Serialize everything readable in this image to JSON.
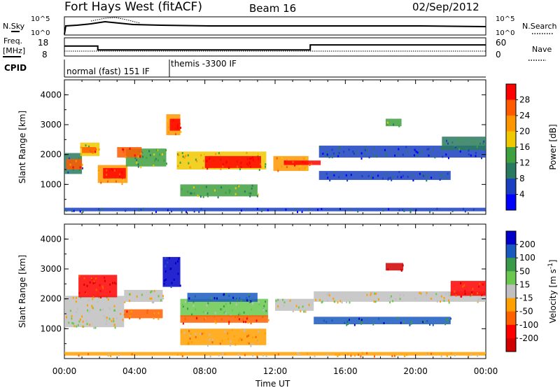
{
  "header": {
    "radar_title": "Fort Hays West (fitACF)",
    "beam": "Beam 16",
    "date": "02/Sep/2012"
  },
  "top_panels": {
    "nsky_label": "N.Sky",
    "nsearch_label": "N.Search",
    "noise_ticks": [
      "10^5",
      "10^0"
    ],
    "freq_label": "Freq.",
    "freq_unit": "[MHz]",
    "freq_ticks": [
      "18",
      "8"
    ],
    "nave_label": "Nave",
    "nave_ticks": [
      "60",
      "0"
    ],
    "cpid_label": "CPID",
    "cpid_segments": [
      {
        "label": "normal (fast) 151 IF",
        "start_hour": 0,
        "end_hour": 6
      },
      {
        "label": "themis -3300 IF",
        "start_hour": 6,
        "end_hour": 24
      }
    ],
    "freq_mhz_series": [
      {
        "hour": 0,
        "value": 14.5
      },
      {
        "hour": 1.9,
        "value": 14.5
      },
      {
        "hour": 1.9,
        "value": 11.5
      },
      {
        "hour": 14,
        "value": 11.5
      },
      {
        "hour": 14,
        "value": 15.3
      },
      {
        "hour": 24,
        "value": 15.3
      }
    ]
  },
  "chart_data": [
    {
      "type": "heatmap",
      "title": "Power",
      "xlabel": "Time UT",
      "ylabel": "Slant Range [km]",
      "xlim": [
        0,
        24
      ],
      "ylim": [
        0,
        4500
      ],
      "x_ticks": [
        "00:00",
        "04:00",
        "08:00",
        "12:00",
        "16:00",
        "20:00",
        "00:00"
      ],
      "y_ticks": [
        "1000",
        "2000",
        "3000",
        "4000"
      ],
      "colorbar_label": "Power [dB]",
      "colorbar_ticks": [
        "28",
        "24",
        "20",
        "16",
        "12",
        "8",
        "4"
      ],
      "colors": [
        "#ff0000",
        "#ff5a00",
        "#ff9600",
        "#f0c800",
        "#3fa03f",
        "#2a7a60",
        "#1a3fc0",
        "#0000ff"
      ],
      "regions": [
        {
          "t0": 0,
          "t1": 1.0,
          "r0": 1350,
          "r1": 2050,
          "level": 5
        },
        {
          "t0": 0.1,
          "t1": 1.0,
          "r0": 1500,
          "r1": 1850,
          "level": 1
        },
        {
          "t0": 0.9,
          "t1": 2.0,
          "r0": 1950,
          "r1": 2400,
          "level": 3
        },
        {
          "t0": 1.0,
          "t1": 1.8,
          "r0": 2050,
          "r1": 2250,
          "level": 1
        },
        {
          "t0": 1.9,
          "t1": 3.6,
          "r0": 1050,
          "r1": 1650,
          "level": 2
        },
        {
          "t0": 2.2,
          "t1": 3.5,
          "r0": 1200,
          "r1": 1550,
          "level": 0
        },
        {
          "t0": 3.5,
          "t1": 5.8,
          "r0": 1600,
          "r1": 2200,
          "level": 4
        },
        {
          "t0": 3.0,
          "t1": 4.4,
          "r0": 1900,
          "r1": 2250,
          "level": 1
        },
        {
          "t0": 5.8,
          "t1": 6.6,
          "r0": 2650,
          "r1": 3350,
          "level": 2
        },
        {
          "t0": 6.0,
          "t1": 6.6,
          "r0": 2800,
          "r1": 3200,
          "level": 0
        },
        {
          "t0": 6.4,
          "t1": 11.5,
          "r0": 1500,
          "r1": 2100,
          "level": 3
        },
        {
          "t0": 8.0,
          "t1": 11.2,
          "r0": 1550,
          "r1": 1950,
          "level": 0
        },
        {
          "t0": 6.6,
          "t1": 11.0,
          "r0": 600,
          "r1": 1000,
          "level": 4
        },
        {
          "t0": 11.9,
          "t1": 13.9,
          "r0": 1450,
          "r1": 1950,
          "level": 2
        },
        {
          "t0": 12.5,
          "t1": 14.6,
          "r0": 1650,
          "r1": 1800,
          "level": 0
        },
        {
          "t0": 14.5,
          "t1": 24,
          "r0": 1900,
          "r1": 2300,
          "level": 6
        },
        {
          "t0": 14.5,
          "t1": 22.0,
          "r0": 1150,
          "r1": 1450,
          "level": 6
        },
        {
          "t0": 21.5,
          "t1": 24,
          "r0": 2150,
          "r1": 2600,
          "level": 5
        },
        {
          "t0": 18.3,
          "t1": 19.2,
          "r0": 2950,
          "r1": 3200,
          "level": 4
        },
        {
          "t0": 0,
          "t1": 24,
          "r0": 100,
          "r1": 220,
          "level": 6
        }
      ]
    },
    {
      "type": "heatmap",
      "title": "Velocity",
      "xlabel": "Time UT",
      "ylabel": "Slant Range [km]",
      "xlim": [
        0,
        24
      ],
      "ylim": [
        0,
        4500
      ],
      "x_ticks": [
        "00:00",
        "04:00",
        "08:00",
        "12:00",
        "16:00",
        "20:00",
        "00:00"
      ],
      "y_ticks": [
        "1000",
        "2000",
        "3000",
        "4000"
      ],
      "colorbar_label": "Velocity [m s",
      "colorbar_unit_exp": "-1",
      "colorbar_ticks": [
        "200",
        "100",
        "50",
        "15",
        "-15",
        "-50",
        "-100",
        "-200"
      ],
      "colors": [
        "#0000c8",
        "#1a5ac0",
        "#3a9a4a",
        "#6ac850",
        "#c0c0c0",
        "#ffa000",
        "#ff6000",
        "#ff0000",
        "#d00000"
      ],
      "regions": [
        {
          "t0": 0,
          "t1": 3.4,
          "r0": 1050,
          "r1": 2100,
          "level": 4
        },
        {
          "t0": 0.8,
          "t1": 3.0,
          "r0": 2050,
          "r1": 2800,
          "level": 7
        },
        {
          "t0": 3.4,
          "t1": 5.6,
          "r0": 1350,
          "r1": 1650,
          "level": 6
        },
        {
          "t0": 3.4,
          "t1": 5.6,
          "r0": 1900,
          "r1": 2300,
          "level": 4
        },
        {
          "t0": 5.6,
          "t1": 6.6,
          "r0": 2400,
          "r1": 3400,
          "level": 0
        },
        {
          "t0": 6.6,
          "t1": 11.6,
          "r0": 1400,
          "r1": 2000,
          "level": 3
        },
        {
          "t0": 7.0,
          "t1": 11.0,
          "r0": 1900,
          "r1": 2200,
          "level": 1
        },
        {
          "t0": 6.6,
          "t1": 11.5,
          "r0": 450,
          "r1": 1000,
          "level": 5
        },
        {
          "t0": 6.6,
          "t1": 11.6,
          "r0": 1200,
          "r1": 1450,
          "level": 6
        },
        {
          "t0": 12.0,
          "t1": 14.2,
          "r0": 1600,
          "r1": 2000,
          "level": 4
        },
        {
          "t0": 14.2,
          "t1": 24,
          "r0": 1900,
          "r1": 2250,
          "level": 4
        },
        {
          "t0": 14.2,
          "t1": 22.0,
          "r0": 1150,
          "r1": 1400,
          "level": 1
        },
        {
          "t0": 22.0,
          "t1": 24,
          "r0": 2100,
          "r1": 2600,
          "level": 7
        },
        {
          "t0": 18.3,
          "t1": 19.3,
          "r0": 2950,
          "r1": 3200,
          "level": 8
        },
        {
          "t0": 0,
          "t1": 24,
          "r0": 100,
          "r1": 220,
          "level": 5
        }
      ]
    }
  ]
}
